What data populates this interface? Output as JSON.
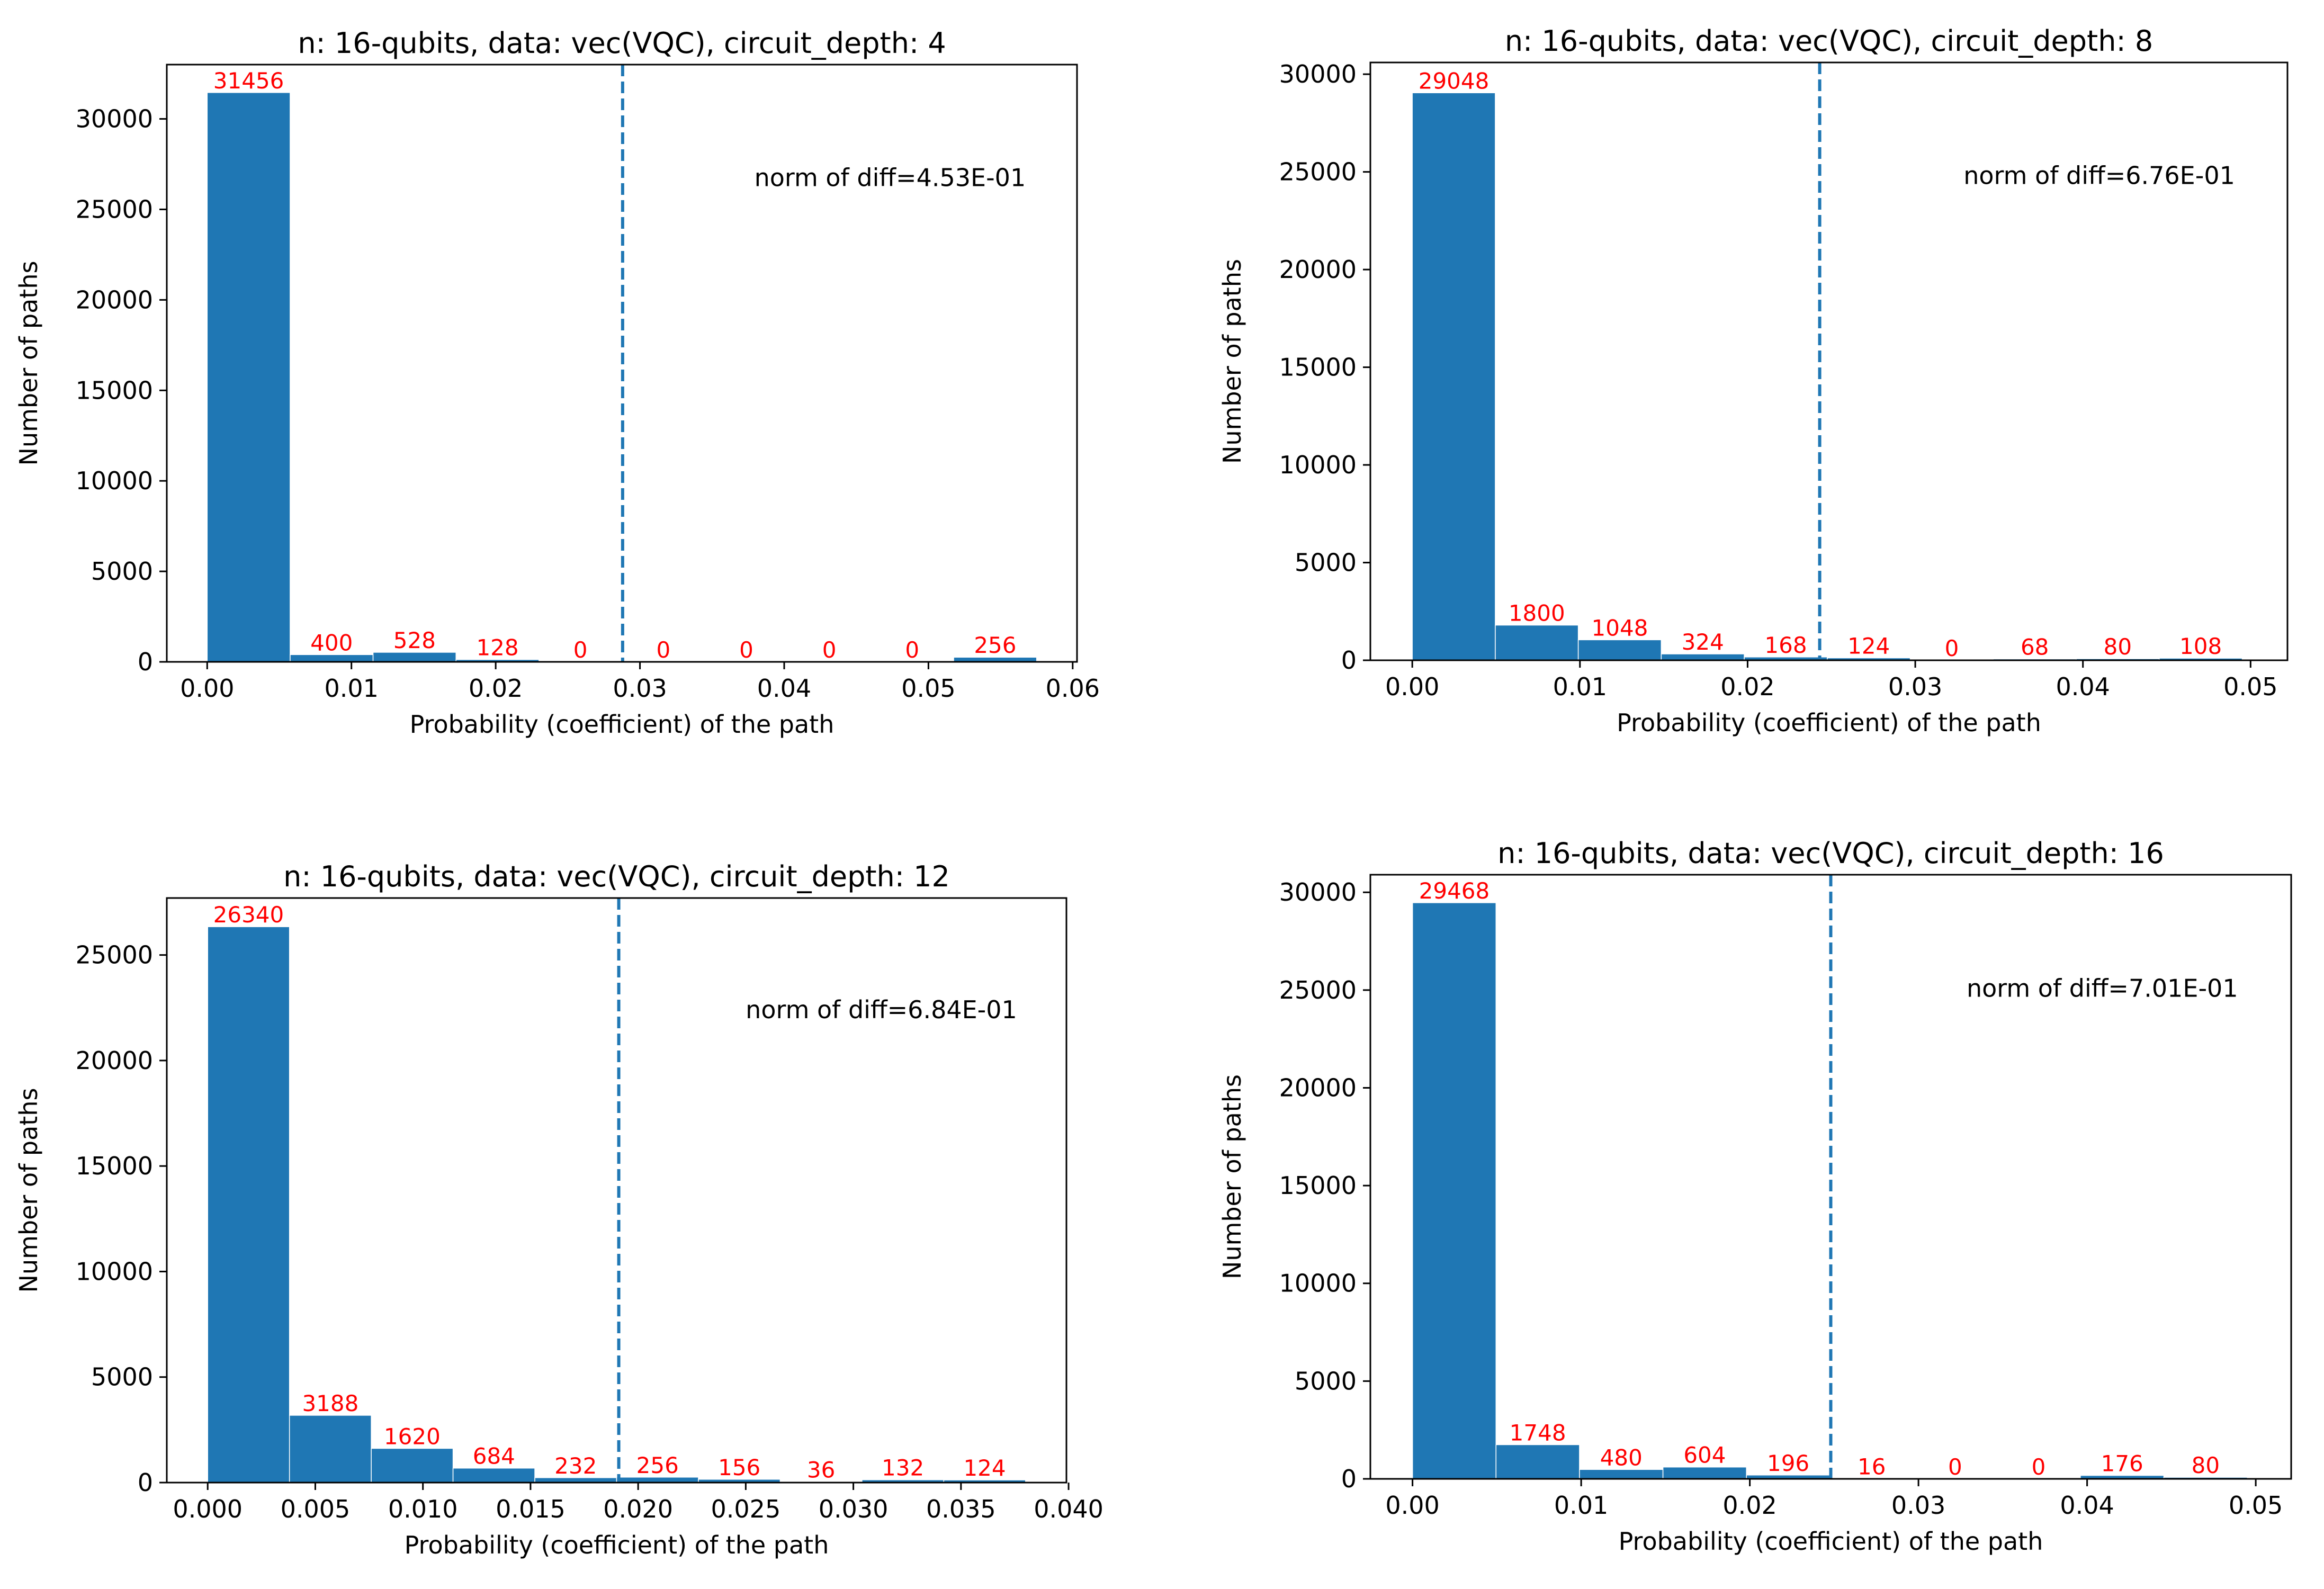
{
  "chart_data": [
    {
      "type": "bar",
      "title": "n: 16-qubits, data: vec(VQC), circuit_depth: 4",
      "xlabel": "Probability (coefficient) of the path",
      "ylabel": "Number of paths",
      "bin_edges": [
        0.0,
        0.00575,
        0.0115,
        0.01725,
        0.023,
        0.02875,
        0.0345,
        0.04025,
        0.046,
        0.05175,
        0.0575
      ],
      "values": [
        31456,
        400,
        528,
        128,
        0,
        0,
        0,
        0,
        0,
        256
      ],
      "value_labels": [
        "31456",
        "400",
        "528",
        "128",
        "0",
        "0",
        "0",
        "0",
        "0",
        "256"
      ],
      "xlim": [
        -0.0028,
        0.0603
      ],
      "ylim": [
        0,
        33000
      ],
      "xticks": [
        0.0,
        0.01,
        0.02,
        0.03,
        0.04,
        0.05,
        0.06
      ],
      "xtick_labels": [
        "0.00",
        "0.01",
        "0.02",
        "0.03",
        "0.04",
        "0.05",
        "0.06"
      ],
      "yticks": [
        0,
        5000,
        10000,
        15000,
        20000,
        25000,
        30000
      ],
      "ytick_labels": [
        "0",
        "5000",
        "10000",
        "15000",
        "20000",
        "25000",
        "30000"
      ],
      "threshold_x": 0.0288,
      "annotation": "norm of diff=4.53E-01",
      "bar_color": "#1f77b4",
      "label_color": "#ff0000",
      "grid": false,
      "legend": "none"
    },
    {
      "type": "bar",
      "title": "n: 16-qubits, data: vec(VQC), circuit_depth: 8",
      "xlabel": "Probability (coefficient) of the path",
      "ylabel": "Number of paths",
      "bin_edges": [
        0.0,
        0.00495,
        0.0099,
        0.01485,
        0.0198,
        0.02475,
        0.0297,
        0.03465,
        0.0396,
        0.04455,
        0.0495
      ],
      "values": [
        29048,
        1800,
        1048,
        324,
        168,
        124,
        0,
        68,
        80,
        108
      ],
      "value_labels": [
        "29048",
        "1800",
        "1048",
        "324",
        "168",
        "124",
        "0",
        "68",
        "80",
        "108"
      ],
      "xlim": [
        -0.0025,
        0.0522
      ],
      "ylim": [
        0,
        30600
      ],
      "xticks": [
        0.0,
        0.01,
        0.02,
        0.03,
        0.04,
        0.05
      ],
      "xtick_labels": [
        "0.00",
        "0.01",
        "0.02",
        "0.03",
        "0.04",
        "0.05"
      ],
      "yticks": [
        0,
        5000,
        10000,
        15000,
        20000,
        25000,
        30000
      ],
      "ytick_labels": [
        "0",
        "5000",
        "10000",
        "15000",
        "20000",
        "25000",
        "30000"
      ],
      "threshold_x": 0.0243,
      "annotation": "norm of diff=6.76E-01",
      "bar_color": "#1f77b4",
      "label_color": "#ff0000",
      "grid": false,
      "legend": "none"
    },
    {
      "type": "bar",
      "title": "n: 16-qubits, data: vec(VQC), circuit_depth: 12",
      "xlabel": "Probability (coefficient) of the path",
      "ylabel": "Number of paths",
      "bin_edges": [
        0.0,
        0.0038,
        0.0076,
        0.0114,
        0.0152,
        0.019,
        0.0228,
        0.0266,
        0.0304,
        0.0342,
        0.038
      ],
      "values": [
        26340,
        3188,
        1620,
        684,
        232,
        256,
        156,
        36,
        132,
        124
      ],
      "value_labels": [
        "26340",
        "3188",
        "1620",
        "684",
        "232",
        "256",
        "156",
        "36",
        "132",
        "124"
      ],
      "xlim": [
        -0.0019,
        0.0399
      ],
      "ylim": [
        0,
        27700
      ],
      "xticks": [
        0.0,
        0.005,
        0.01,
        0.015,
        0.02,
        0.025,
        0.03,
        0.035,
        0.04
      ],
      "xtick_labels": [
        "0.000",
        "0.005",
        "0.010",
        "0.015",
        "0.020",
        "0.025",
        "0.030",
        "0.035",
        "0.040"
      ],
      "yticks": [
        0,
        5000,
        10000,
        15000,
        20000,
        25000
      ],
      "ytick_labels": [
        "0",
        "5000",
        "10000",
        "15000",
        "20000",
        "25000"
      ],
      "threshold_x": 0.0191,
      "annotation": "norm of diff=6.84E-01",
      "bar_color": "#1f77b4",
      "label_color": "#ff0000",
      "grid": false,
      "legend": "none"
    },
    {
      "type": "bar",
      "title": "n: 16-qubits, data: vec(VQC), circuit_depth: 16",
      "xlabel": "Probability (coefficient) of the path",
      "ylabel": "Number of paths",
      "bin_edges": [
        0.0,
        0.00495,
        0.0099,
        0.01485,
        0.0198,
        0.02475,
        0.0297,
        0.03465,
        0.0396,
        0.04455,
        0.0495
      ],
      "values": [
        29468,
        1748,
        480,
        604,
        196,
        16,
        0,
        0,
        176,
        80
      ],
      "value_labels": [
        "29468",
        "1748",
        "480",
        "604",
        "196",
        "16",
        "0",
        "0",
        "176",
        "80"
      ],
      "xlim": [
        -0.0025,
        0.0521
      ],
      "ylim": [
        0,
        30900
      ],
      "xticks": [
        0.0,
        0.01,
        0.02,
        0.03,
        0.04,
        0.05
      ],
      "xtick_labels": [
        "0.00",
        "0.01",
        "0.02",
        "0.03",
        "0.04",
        "0.05"
      ],
      "yticks": [
        0,
        5000,
        10000,
        15000,
        20000,
        25000,
        30000
      ],
      "ytick_labels": [
        "0",
        "5000",
        "10000",
        "15000",
        "20000",
        "25000",
        "30000"
      ],
      "threshold_x": 0.0248,
      "annotation": "norm of diff=7.01E-01",
      "bar_color": "#1f77b4",
      "label_color": "#ff0000",
      "grid": false,
      "legend": "none"
    }
  ]
}
